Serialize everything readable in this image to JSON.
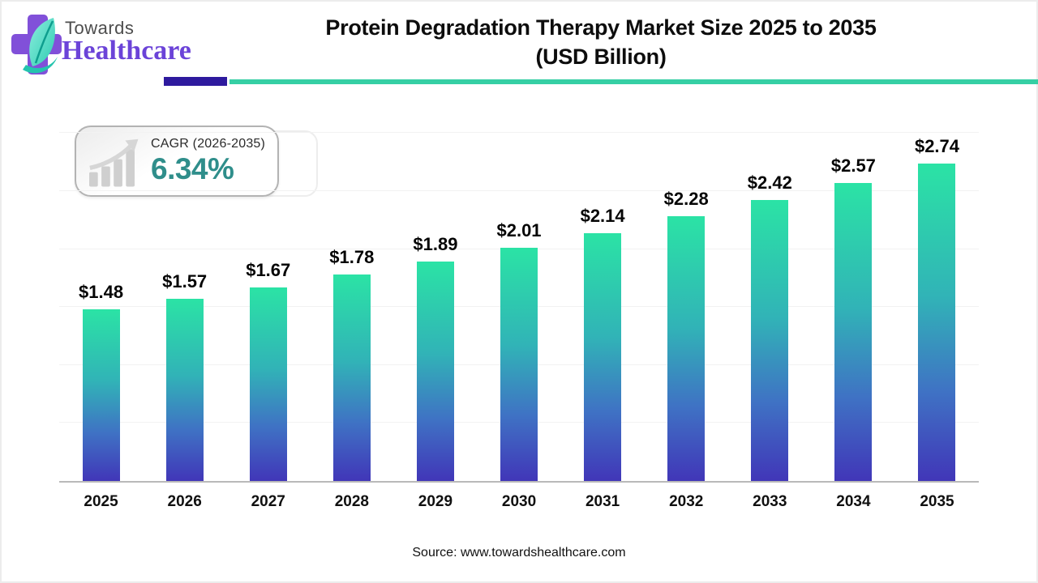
{
  "header": {
    "logo": {
      "icon": "cross-leaf-icon",
      "brand_top": "Towards",
      "brand_bottom": "Healthcare",
      "brand_purple": "#6b43d8"
    },
    "title_line1": "Protein Degradation Therapy Market Size 2025 to 2035",
    "title_line2": "(USD Billion)",
    "divider": {
      "purple": "#2e1a9e",
      "teal": "#36cfa4"
    }
  },
  "cagr_badge": {
    "icon": "growth-trend-icon",
    "label": "CAGR (2026-2035)",
    "value": "6.34%",
    "value_color": "#2f8e8b"
  },
  "chart_data": {
    "type": "bar",
    "title": "Protein Degradation Therapy Market Size 2025 to 2035 (USD Billion)",
    "categories": [
      "2025",
      "2026",
      "2027",
      "2028",
      "2029",
      "2030",
      "2031",
      "2032",
      "2033",
      "2034",
      "2035"
    ],
    "values": [
      1.48,
      1.57,
      1.67,
      1.78,
      1.89,
      2.01,
      2.14,
      2.28,
      2.42,
      2.57,
      2.74
    ],
    "value_labels": [
      "$1.48",
      "$1.57",
      "$1.67",
      "$1.78",
      "$1.89",
      "$2.01",
      "$2.14",
      "$2.28",
      "$2.42",
      "$2.57",
      "$2.74"
    ],
    "xlabel": "",
    "ylabel": "",
    "ylim": [
      0,
      3.1
    ],
    "grid_step": 0.5,
    "grid_max": 3.0,
    "grid": "horizontal-faint",
    "legend": "none",
    "bar_gradient": {
      "top": "#2be3a5",
      "upper_mid": "#31b3b7",
      "lower_mid": "#3f72c4",
      "bottom": "#4136b8"
    }
  },
  "footer": {
    "source": "Source: www.towardshealthcare.com"
  }
}
